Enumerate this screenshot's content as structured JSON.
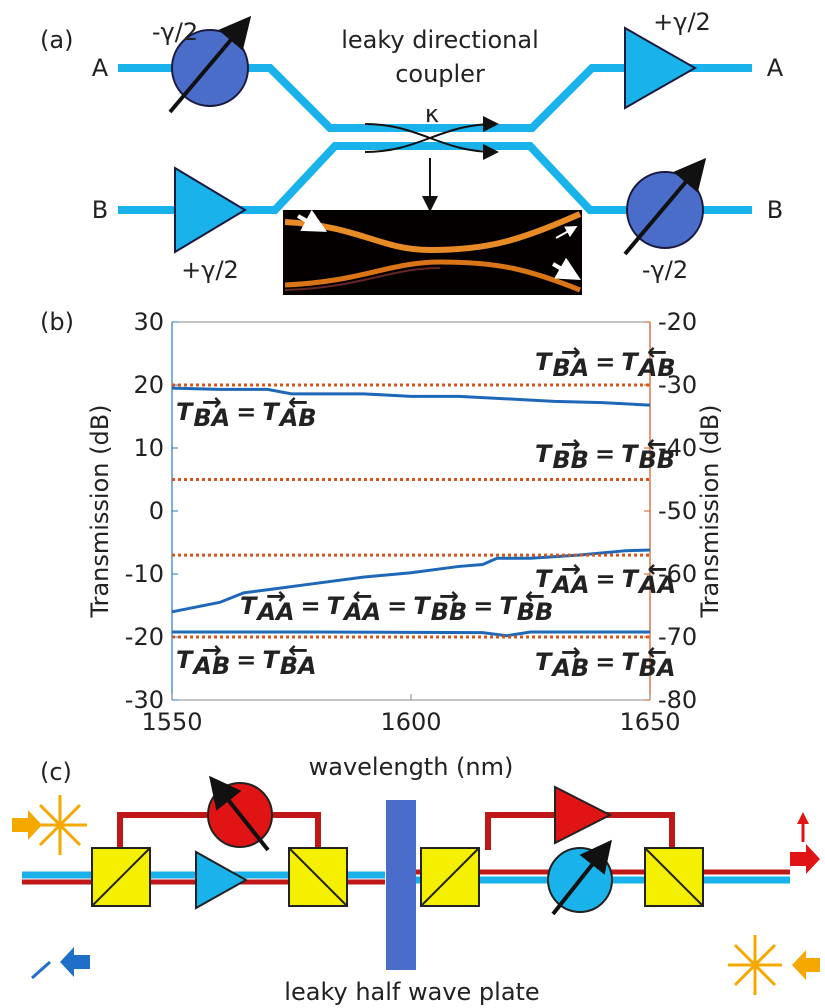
{
  "panel_a": {
    "label": "(a)",
    "texts": [
      "-γ/2",
      "A",
      "leaky directional",
      "coupler",
      "κ",
      "+γ/2",
      "A",
      "B",
      "+γ/2",
      "-γ/2",
      "B"
    ]
  },
  "panel_b": {
    "label": "(b)"
  },
  "panel_c": {
    "label": "(c)",
    "caption": "leaky half wave plate"
  },
  "chart_data": {
    "type": "line",
    "xlabel": "wavelength (nm)",
    "ylabel": "Transmission (dB)",
    "y2label": "Transmission (dB)",
    "xlim": [
      1550,
      1650
    ],
    "xticks": [
      1550,
      1600,
      1650
    ],
    "ylim": [
      -30,
      30
    ],
    "yticks": [
      -30,
      -20,
      -10,
      0,
      10,
      20,
      30
    ],
    "y2lim": [
      -80,
      -20
    ],
    "y2ticks": [
      -80,
      -70,
      -60,
      -50,
      -40,
      -30,
      -20
    ],
    "left_color": "#2a78c2",
    "right_color": "#d2571e",
    "series": [
      {
        "color": "#1f68b8",
        "style": "solid",
        "x": [
          1550,
          1560,
          1570,
          1575,
          1590,
          1600,
          1610,
          1620,
          1630,
          1640,
          1650
        ],
        "values": [
          19.5,
          19.3,
          19.3,
          18.6,
          18.6,
          18.2,
          18.2,
          17.8,
          17.4,
          17.2,
          16.8
        ]
      },
      {
        "color": "#1f68b8",
        "style": "solid",
        "x": [
          1550,
          1560,
          1565,
          1570,
          1580,
          1590,
          1600,
          1610,
          1615,
          1618,
          1625,
          1635,
          1645,
          1650
        ],
        "values": [
          -16,
          -14.5,
          -13,
          -12.5,
          -11.5,
          -10.5,
          -9.8,
          -8.8,
          -8.5,
          -7.5,
          -7.5,
          -7,
          -6.3,
          -6.2
        ]
      },
      {
        "color": "#1f68b8",
        "style": "solid",
        "x": [
          1550,
          1580,
          1615,
          1620,
          1625,
          1650
        ],
        "values": [
          -19.2,
          -19.2,
          -19.3,
          -19.8,
          -19.2,
          -19.2
        ]
      },
      {
        "color": "#d2571e",
        "style": "dotted",
        "axis": "y2",
        "x": [
          1550,
          1650
        ],
        "values": [
          -30,
          -30
        ]
      },
      {
        "color": "#d2571e",
        "style": "dotted",
        "axis": "y2",
        "x": [
          1550,
          1650
        ],
        "values": [
          -45,
          -45
        ]
      },
      {
        "color": "#d2571e",
        "style": "dotted",
        "axis": "y2",
        "x": [
          1550,
          1650
        ],
        "values": [
          -57,
          -57
        ]
      },
      {
        "color": "#d2571e",
        "style": "dotted",
        "axis": "y2",
        "x": [
          1550,
          1650
        ],
        "values": [
          -70,
          -70
        ]
      }
    ],
    "annotations": [
      {
        "color": "#1f68b8",
        "sep": "=",
        "terms": [
          {
            "base": "T",
            "sub": "BA",
            "sup": "→"
          },
          {
            "base": "T",
            "sub": "AB",
            "sup": "←"
          }
        ]
      },
      {
        "color": "#1f68b8",
        "sep": "=",
        "terms": [
          {
            "base": "T",
            "sub": "AA",
            "sup": "→"
          },
          {
            "base": "T",
            "sub": "AA",
            "sup": "←"
          },
          {
            "base": "T",
            "sub": "BB",
            "sup": "→"
          },
          {
            "base": "T",
            "sub": "BB",
            "sup": "←"
          }
        ]
      },
      {
        "color": "#1f68b8",
        "sep": "=",
        "terms": [
          {
            "base": "T",
            "sub": "AB",
            "sup": "→"
          },
          {
            "base": "T",
            "sub": "BA",
            "sup": "←"
          }
        ]
      },
      {
        "color": "#d2571e",
        "sep": "=",
        "terms": [
          {
            "base": "T",
            "sub": "BA",
            "sup": "→"
          },
          {
            "base": "T",
            "sub": "AB",
            "sup": "←"
          }
        ]
      },
      {
        "color": "#d2571e",
        "sep": "=",
        "terms": [
          {
            "base": "T",
            "sub": "BB",
            "sup": "→"
          },
          {
            "base": "T",
            "sub": "BB",
            "sup": "←"
          }
        ]
      },
      {
        "color": "#d2571e",
        "sep": "=",
        "terms": [
          {
            "base": "T",
            "sub": "AA",
            "sup": "→"
          },
          {
            "base": "T",
            "sub": "AA",
            "sup": "←"
          }
        ]
      },
      {
        "color": "#d2571e",
        "sep": "=",
        "terms": [
          {
            "base": "T",
            "sub": "AB",
            "sup": "→"
          },
          {
            "base": "T",
            "sub": "BA",
            "sup": "←"
          }
        ]
      }
    ]
  }
}
